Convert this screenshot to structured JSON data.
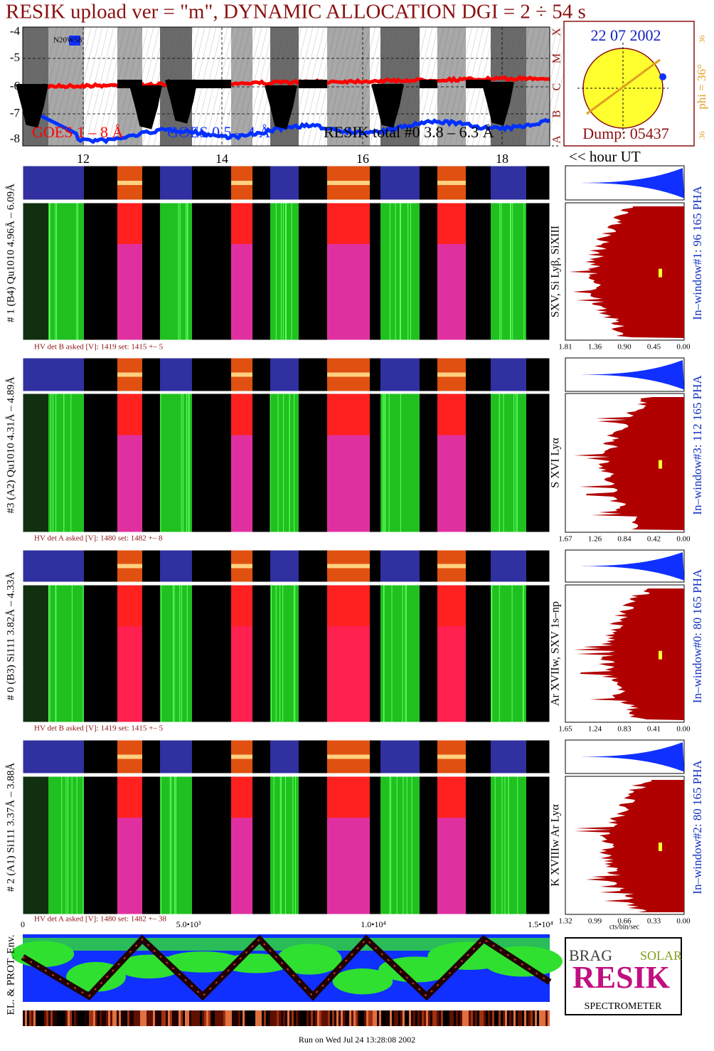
{
  "title": "RESIK upload ver = \"m\", DYNAMIC ALLOCATION  DGI =  2 ÷  54 s",
  "goes_panel": {
    "y_ticks": [
      "-4",
      "-5",
      "-6",
      "-7",
      "-8"
    ],
    "class_labels": [
      "X",
      "M",
      "C",
      "B",
      "A"
    ],
    "annotation": "N20W58",
    "legend": [
      "GOES 1 – 8 Å",
      "GOES 0.5 – 4 Å",
      "RESIK total #0  3.8 – 6.3 Å"
    ]
  },
  "sun": {
    "date": "22 07 2002",
    "phi": "phi = 36°",
    "phi_ticks": [
      "36",
      "36"
    ],
    "dump": "Dump: 05437"
  },
  "time_axis": {
    "ticks": [
      "12",
      "14",
      "16",
      "18"
    ],
    "unit_label": "<< hour UT"
  },
  "channels": [
    {
      "label": "# 1 (B4) Qu1010 4.96Å – 6.09Å",
      "lines": "SXV, Si Lyβ, SiXIII",
      "in_window": "In–window#1:   96 165  PHA",
      "hv": "HV det B asked [V]:  1419  set:  1415  +–   5",
      "x_ticks": [
        "1.81",
        "1.36",
        "0.90",
        "0.45",
        "0.00"
      ]
    },
    {
      "label": "#3 (A2) Qu1010  4.31Å – 4.89Å",
      "lines": "S XVI Lyα",
      "in_window": "In–window#3:  112 165  PHA",
      "hv": "HV det A asked [V]:  1480  set:  1482  +–   8",
      "x_ticks": [
        "1.67",
        "1.26",
        "0.84",
        "0.42",
        "0.00"
      ]
    },
    {
      "label": "# 0 (B3) Si111  3.82Å – 4.33Å",
      "lines": "Ar XVIIw,  SXV  1s–np",
      "in_window": "In–window#0:   80 165  PHA",
      "hv": "HV det B asked [V]:  1419  set:  1415  +–   5",
      "x_ticks": [
        "1.65",
        "1.24",
        "0.83",
        "0.41",
        "0.00"
      ]
    },
    {
      "label": "# 2 (A1) Si111  3.37Å – 3.88Å",
      "lines": "K XVIIIw  Ar Lyα",
      "in_window": "In–window#2:   80 165  PHA",
      "hv": "HV det A asked [V]:  1480  set:  1482  +–  38",
      "x_ticks": [
        "1.32",
        "0.99",
        "0.66",
        "0.33",
        "0.00"
      ]
    }
  ],
  "bottom_axis": {
    "ticks": [
      "0",
      "5.0•10³",
      "1.0•10⁴",
      "1.5•10⁴"
    ],
    "unit_label": "cts/bin/sec"
  },
  "env_label": "EL. & PROT. Env.",
  "logo": {
    "brag": "BRAG",
    "resik": "RESIK",
    "solar": "SOLAR",
    "spectrometer": "SPECTROMETER"
  },
  "footer": "Run on Wed Jul 24 13:28:08 2002"
}
